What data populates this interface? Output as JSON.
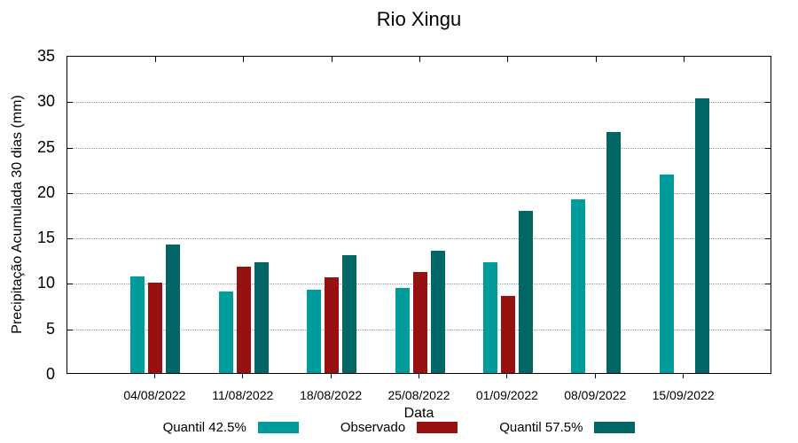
{
  "chart_data": {
    "type": "bar",
    "title": "Rio Xingu",
    "xlabel": "Data",
    "ylabel": "Precipitação Acumulada 30 dias (mm)",
    "ylim": [
      0,
      35
    ],
    "ytick_step": 5,
    "grid": "horizontal-dotted",
    "legend_position": "bottom-center",
    "categories": [
      "04/08/2022",
      "11/08/2022",
      "18/08/2022",
      "25/08/2022",
      "01/09/2022",
      "08/09/2022",
      "15/09/2022"
    ],
    "series": [
      {
        "name": "Quantil 42.5%",
        "color": "#009C9C",
        "values": [
          10.6,
          9.0,
          9.2,
          9.4,
          12.2,
          19.1,
          21.8
        ]
      },
      {
        "name": "Observado",
        "color": "#971111",
        "values": [
          9.9,
          11.7,
          10.5,
          11.1,
          8.5,
          null,
          null
        ]
      },
      {
        "name": "Quantil 57.5%",
        "color": "#006666",
        "values": [
          14.1,
          12.2,
          13.0,
          13.5,
          17.8,
          26.5,
          30.2
        ]
      }
    ],
    "axis_color": "#000000",
    "grid_color": "#9e9e9e"
  }
}
